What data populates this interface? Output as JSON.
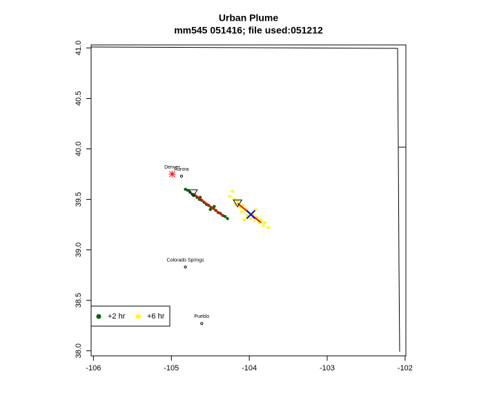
{
  "chart_data": {
    "type": "scatter",
    "title": "Urban Plume",
    "subtitle": "mm545 051416; file used:051212",
    "xlim": [
      -106.03,
      -101.99
    ],
    "ylim": [
      37.95,
      41.03
    ],
    "xticks": [
      -106,
      -105,
      -104,
      -103,
      -102
    ],
    "yticks": [
      {
        "value": 38,
        "label": "38.0"
      },
      38.5,
      {
        "value": 39,
        "label": "39.0"
      },
      39.5,
      {
        "value": 40,
        "label": "40.0"
      },
      40.5,
      {
        "value": 41,
        "label": "41.0"
      }
    ],
    "legend": "bottomleft",
    "series": [
      {
        "name": "+2 hr",
        "color": "#006400",
        "x": [
          -104.82,
          -104.79,
          -104.76,
          -104.73,
          -104.7,
          -104.67,
          -104.64,
          -104.61,
          -104.58,
          -104.55,
          -104.52,
          -104.49,
          -104.46,
          -104.43,
          -104.4,
          -104.37,
          -104.34,
          -104.31,
          -104.28,
          -104.63,
          -104.5,
          -104.45
        ],
        "values": [
          39.6,
          39.59,
          39.57,
          39.55,
          39.54,
          39.52,
          39.5,
          39.49,
          39.47,
          39.45,
          39.44,
          39.42,
          39.41,
          39.39,
          39.37,
          39.36,
          39.34,
          39.33,
          39.31,
          39.52,
          39.4,
          39.43
        ]
      },
      {
        "name": "+6 hr",
        "color": "#ffff00",
        "x": [
          -104.25,
          -104.2,
          -104.18,
          -104.15,
          -104.12,
          -104.1,
          -104.08,
          -104.05,
          -104.03,
          -104.0,
          -103.98,
          -103.95,
          -103.93,
          -103.9,
          -103.88,
          -103.85,
          -103.82,
          -103.8,
          -103.76,
          -104.22,
          -104.07,
          -103.92
        ],
        "values": [
          39.53,
          39.5,
          39.45,
          39.48,
          39.42,
          39.38,
          39.44,
          39.4,
          39.34,
          39.37,
          39.31,
          39.35,
          39.29,
          39.32,
          39.27,
          39.3,
          39.24,
          39.27,
          39.22,
          39.58,
          39.3,
          39.4
        ]
      }
    ],
    "tracks": [
      {
        "color": "#ff0000",
        "x": [
          -104.72,
          -104.33
        ],
        "values": [
          39.56,
          39.33
        ]
      },
      {
        "color": "#ff0000",
        "x": [
          -104.15,
          -103.85
        ],
        "values": [
          39.46,
          39.27
        ]
      }
    ],
    "center": {
      "color": "#0000ff",
      "x": -103.98,
      "y": 39.35
    },
    "cities": [
      {
        "name": "Denver",
        "lon": -104.99,
        "lat": 39.75,
        "symbol": "asterisk",
        "color": "#ff0000"
      },
      {
        "name": "Aurora",
        "lon": -104.87,
        "lat": 39.73,
        "symbol": "circle",
        "color": "#000000"
      },
      {
        "name": "Colorado Springs",
        "lon": -104.82,
        "lat": 38.83,
        "symbol": "circle",
        "color": "#000000"
      },
      {
        "name": "Pueblo",
        "lon": -104.61,
        "lat": 38.27,
        "symbol": "circle",
        "color": "#000000"
      }
    ]
  }
}
